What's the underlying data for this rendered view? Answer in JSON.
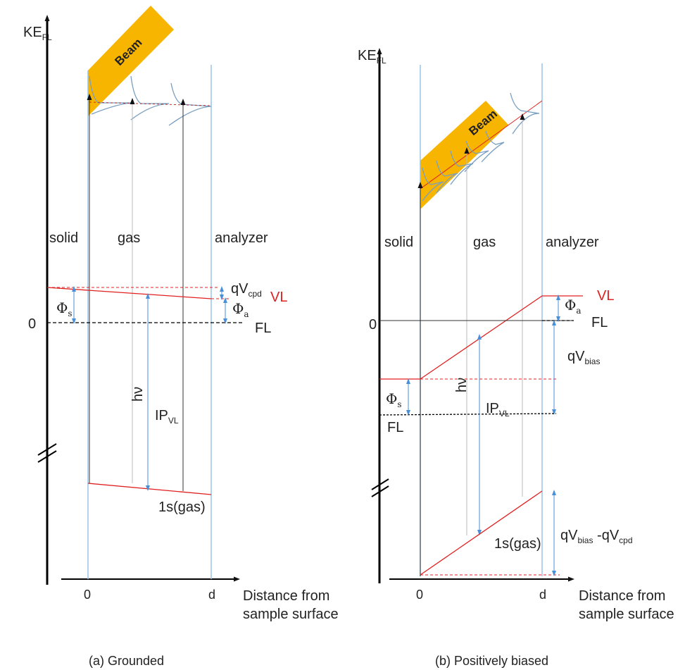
{
  "panel_a": {
    "y_axis_label": "KE",
    "y_axis_sub": "FL",
    "zero_label": "0",
    "beam_label": "Beam",
    "region_solid": "solid",
    "region_gas": "gas",
    "region_analyzer": "analyzer",
    "qv_cpd": "qV",
    "qv_cpd_sub": "cpd",
    "vl_label": "VL",
    "fl_label": "FL",
    "phi_s": "Φ",
    "phi_s_sub": "s",
    "phi_a": "Φ",
    "phi_a_sub": "a",
    "hv_label": "hν",
    "ip_label": "IP",
    "ip_sub": "VL",
    "gas_level": "1s(gas)",
    "x_tick_0": "0",
    "x_tick_d": "d",
    "x_axis_label_1": "Distance from",
    "x_axis_label_2": "sample surface",
    "caption": "(a) Grounded"
  },
  "panel_b": {
    "y_axis_label": "KE",
    "y_axis_sub": "FL",
    "zero_label": "0",
    "beam_label": "Beam",
    "region_solid": "solid",
    "region_gas": "gas",
    "region_analyzer": "analyzer",
    "vl_label": "VL",
    "fl_label_right": "FL",
    "fl_label_left": "FL",
    "phi_a": "Φ",
    "phi_a_sub": "a",
    "phi_s": "Φ",
    "phi_s_sub": "s",
    "qv_bias": "qV",
    "qv_bias_sub": "bias",
    "hv_label": "hν",
    "ip_label": "IP",
    "ip_sub": "VL",
    "gas_level": "1s(gas)",
    "qv_diff_1": "qV",
    "qv_diff_1_sub": "bias",
    "qv_diff_2": " -qV",
    "qv_diff_2_sub": "cpd",
    "x_tick_0": "0",
    "x_tick_d": "d",
    "x_axis_label_1": "Distance from",
    "x_axis_label_2": "sample surface",
    "caption": "(b) Positively biased"
  },
  "colors": {
    "beam": "#f7b500",
    "vacuum_level": "#e02020",
    "region_line": "#9cc3e6",
    "arrow_blue": "#4a90d9"
  }
}
